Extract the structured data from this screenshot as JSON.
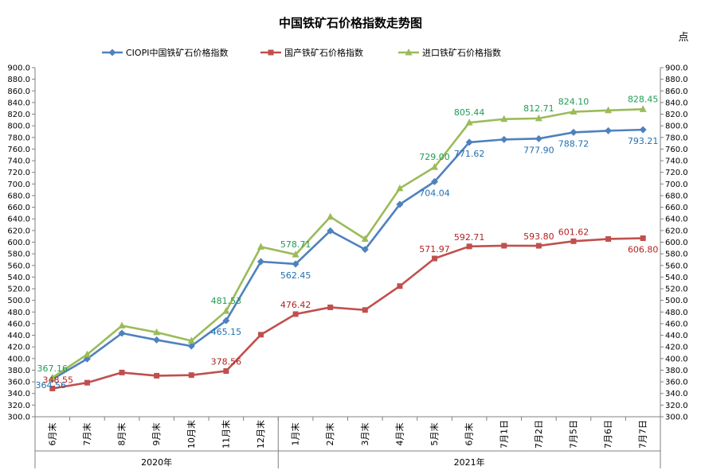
{
  "chart_data": {
    "type": "line",
    "title": "中国铁矿石价格指数走势图",
    "unit_label": "点",
    "ylim": [
      300,
      900
    ],
    "y_step": 20,
    "grid": false,
    "legend_position": "top",
    "categories": [
      "6月末",
      "7月末",
      "8月末",
      "9月末",
      "10月末",
      "11月末",
      "12月末",
      "1月末",
      "2月末",
      "3月末",
      "4月末",
      "5月末",
      "6月末",
      "7月1日",
      "7月2日",
      "7月5日",
      "7月6日",
      "7月7日"
    ],
    "year_groups": [
      {
        "label": "2020年",
        "start": 0,
        "end": 6
      },
      {
        "label": "2021年",
        "start": 7,
        "end": 17
      }
    ],
    "series": [
      {
        "name": "CIOPI中国铁矿石价格指数",
        "color": "#4F81BD",
        "label_color": "#1F6FB0",
        "marker": "diamond",
        "values": [
          364.56,
          399.5,
          443.5,
          432.0,
          421.5,
          465.15,
          566.5,
          562.45,
          619.5,
          587.5,
          665.0,
          704.04,
          771.62,
          776.5,
          777.9,
          788.72,
          791.5,
          793.21
        ],
        "labels": [
          {
            "i": 0,
            "text": "364.56"
          },
          {
            "i": 5,
            "text": "465.15"
          },
          {
            "i": 7,
            "text": "562.45"
          },
          {
            "i": 11,
            "text": "704.04"
          },
          {
            "i": 12,
            "text": "771.62"
          },
          {
            "i": 14,
            "text": "777.90"
          },
          {
            "i": 15,
            "text": "788.72"
          },
          {
            "i": 17,
            "text": "793.21"
          }
        ]
      },
      {
        "name": "国产铁矿石价格指数",
        "color": "#C0504D",
        "label_color": "#B22222",
        "marker": "square",
        "values": [
          348.55,
          358.5,
          376.0,
          370.5,
          371.5,
          378.56,
          441.0,
          476.42,
          488.0,
          483.5,
          524.5,
          571.97,
          592.71,
          593.9,
          593.8,
          601.62,
          605.5,
          606.8
        ],
        "labels": [
          {
            "i": 0,
            "text": "348.55"
          },
          {
            "i": 5,
            "text": "378.56"
          },
          {
            "i": 7,
            "text": "476.42"
          },
          {
            "i": 11,
            "text": "571.97"
          },
          {
            "i": 12,
            "text": "592.71"
          },
          {
            "i": 14,
            "text": "593.80"
          },
          {
            "i": 15,
            "text": "601.62"
          },
          {
            "i": 17,
            "text": "606.80"
          }
        ]
      },
      {
        "name": "进口铁矿石价格指数",
        "color": "#9BBB59",
        "label_color": "#1F9D55",
        "marker": "triangle",
        "values": [
          367.16,
          407.0,
          456.5,
          445.0,
          430.5,
          481.53,
          592.0,
          578.71,
          643.5,
          605.5,
          692.5,
          729.0,
          805.44,
          811.5,
          812.71,
          824.1,
          826.5,
          828.45
        ],
        "labels": [
          {
            "i": 0,
            "text": "367.16"
          },
          {
            "i": 5,
            "text": "481.53"
          },
          {
            "i": 7,
            "text": "578.71"
          },
          {
            "i": 11,
            "text": "729.00"
          },
          {
            "i": 12,
            "text": "805.44"
          },
          {
            "i": 14,
            "text": "812.71"
          },
          {
            "i": 15,
            "text": "824.10"
          },
          {
            "i": 17,
            "text": "828.45"
          }
        ]
      }
    ]
  }
}
